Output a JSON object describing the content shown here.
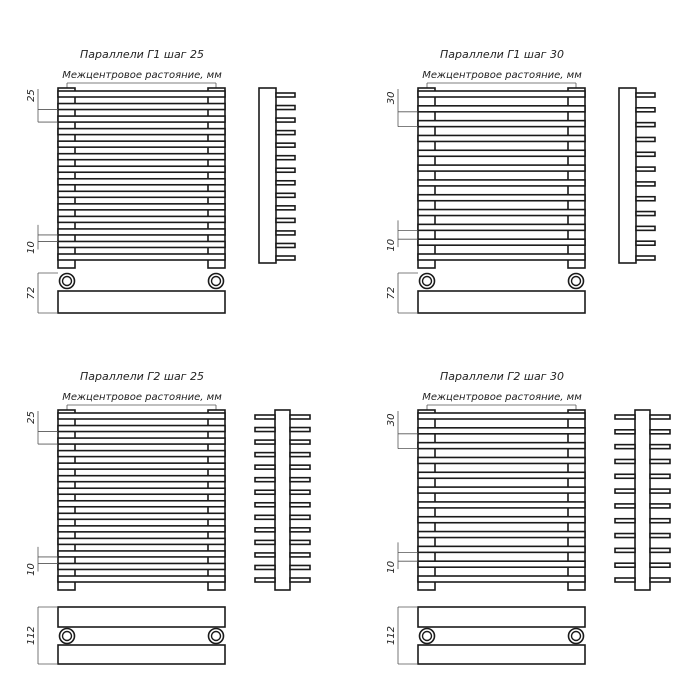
{
  "colors": {
    "line": "#1a1a1a",
    "dim": "#555555",
    "background": "#ffffff"
  },
  "panels": [
    {
      "title": "Параллели Г1 шаг 25",
      "center_distance_label": "Межцентровое растояние, мм",
      "connection": "Г1",
      "step": "25",
      "bars": 14,
      "gap": "10",
      "depth": "72"
    },
    {
      "title": "Параллели Г1 шаг 30",
      "center_distance_label": "Межцентровое растояние, мм",
      "connection": "Г1",
      "step": "30",
      "bars": 12,
      "gap": "10",
      "depth": "72"
    },
    {
      "title": "Параллели Г2 шаг 25",
      "center_distance_label": "Межцентровое растояние, мм",
      "connection": "Г2",
      "step": "25",
      "bars": 14,
      "gap": "10",
      "depth": "112"
    },
    {
      "title": "Параллели Г2 шаг 30",
      "center_distance_label": "Межцентровое растояние, мм",
      "connection": "Г2",
      "step": "30",
      "bars": 12,
      "gap": "10",
      "depth": "112"
    }
  ]
}
